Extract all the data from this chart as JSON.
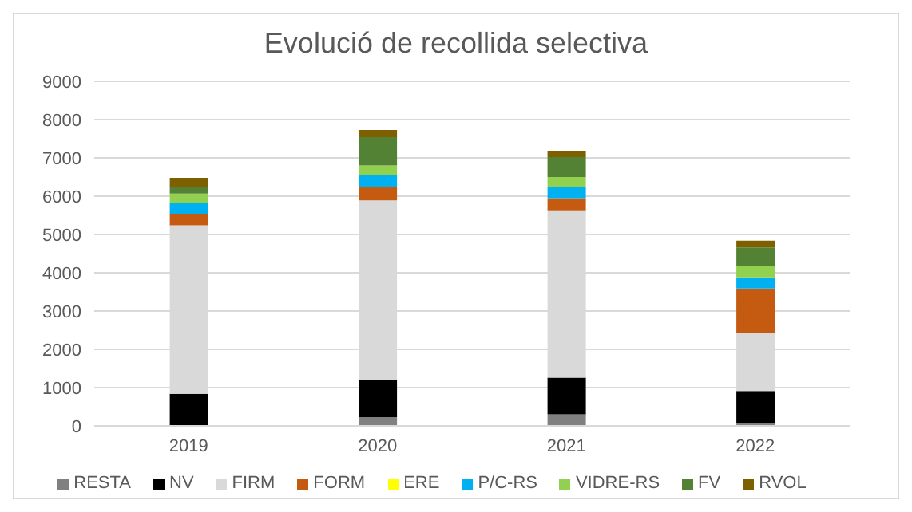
{
  "chart_data": {
    "type": "bar",
    "title": "Evolució de recollida selectiva",
    "categories": [
      "2019",
      "2020",
      "2021",
      "2022"
    ],
    "stacked": true,
    "ylim": [
      0,
      9000
    ],
    "yticks": [
      0,
      1000,
      2000,
      3000,
      4000,
      5000,
      6000,
      7000,
      8000,
      9000
    ],
    "grid": "y",
    "legend": "bottom",
    "series": [
      {
        "name": "RESTA",
        "color": "#808080",
        "values": [
          0,
          230,
          300,
          80
        ]
      },
      {
        "name": "NV",
        "color": "#000000",
        "values": [
          840,
          960,
          960,
          830
        ]
      },
      {
        "name": "FIRM",
        "color": "#d9d9d9",
        "values": [
          4400,
          4700,
          4370,
          1530
        ]
      },
      {
        "name": "FORM",
        "color": "#c55a11",
        "values": [
          300,
          350,
          320,
          1150
        ]
      },
      {
        "name": "ERE",
        "color": "#ffff00",
        "values": [
          0,
          0,
          0,
          0
        ]
      },
      {
        "name": "P/C-RS",
        "color": "#00b0f0",
        "values": [
          270,
          320,
          290,
          290
        ]
      },
      {
        "name": "VIDRE-RS",
        "color": "#92d050",
        "values": [
          260,
          240,
          260,
          300
        ]
      },
      {
        "name": "FV",
        "color": "#548235",
        "values": [
          170,
          740,
          520,
          480
        ]
      },
      {
        "name": "RVOL",
        "color": "#7f6000",
        "values": [
          240,
          190,
          170,
          180
        ]
      }
    ]
  }
}
